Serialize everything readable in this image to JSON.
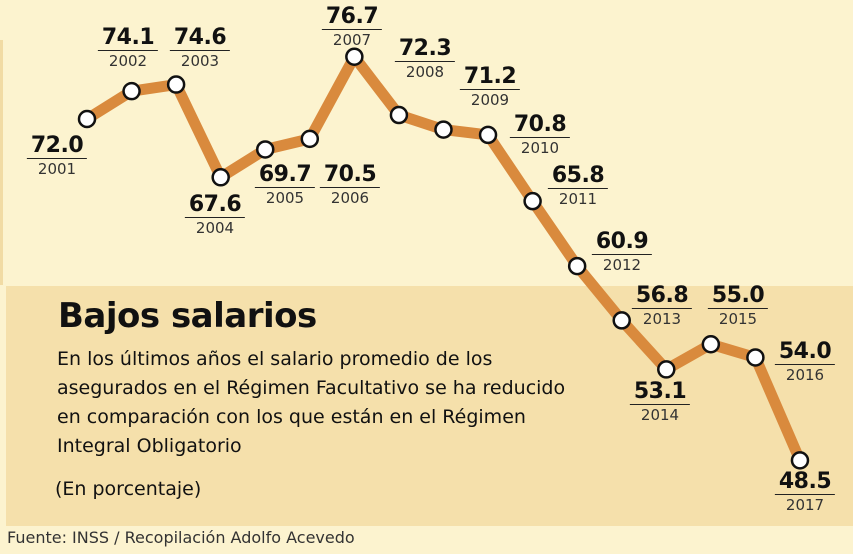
{
  "chart_data": {
    "type": "line",
    "title": "Bajos salarios",
    "subtitle": "En los últimos años el salario promedio de los asegurados en el Régimen Facultativo se ha reducido en comparación con los que están en el Régimen Integral Obligatorio",
    "unit": "(En porcentaje)",
    "source": "Fuente: INSS / Recopilación Adolfo Acevedo",
    "x": [
      "2001",
      "2002",
      "2003",
      "2004",
      "2005",
      "2006",
      "2007",
      "2008",
      "2009",
      "2010",
      "2011",
      "2012",
      "2013",
      "2014",
      "2015",
      "2016",
      "2017"
    ],
    "values": [
      72.0,
      74.1,
      74.6,
      67.6,
      69.7,
      70.5,
      76.7,
      72.3,
      71.2,
      70.8,
      65.8,
      60.9,
      56.8,
      53.1,
      55.0,
      54.0,
      48.5
    ],
    "labels": [
      "72.0",
      "74.1",
      "74.6",
      "67.6",
      "69.7",
      "70.5",
      "76.7",
      "72.3",
      "71.2",
      "70.8",
      "65.8",
      "60.9",
      "56.8",
      "53.1",
      "55.0",
      "54.0",
      "48.5"
    ],
    "grid": false,
    "colors": {
      "line": "#d98a3d",
      "marker_fill": "#ffffff",
      "marker_stroke": "#111111",
      "background": "#fcf3cf",
      "band": "#f5e0ab"
    }
  }
}
